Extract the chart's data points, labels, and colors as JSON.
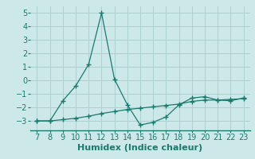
{
  "xlabel": "Humidex (Indice chaleur)",
  "line1_x": [
    7,
    8,
    9,
    10,
    11,
    12,
    13,
    14,
    15,
    16,
    17,
    18,
    19,
    20,
    21,
    22,
    23
  ],
  "line1_y": [
    -3.0,
    -3.0,
    -1.5,
    -0.4,
    1.2,
    5.0,
    0.1,
    -1.8,
    -3.3,
    -3.1,
    -2.7,
    -1.8,
    -1.3,
    -1.2,
    -1.45,
    -1.5,
    -1.3
  ],
  "line2_x": [
    7,
    8,
    9,
    10,
    11,
    12,
    13,
    14,
    15,
    16,
    17,
    18,
    19,
    20,
    21,
    22,
    23
  ],
  "line2_y": [
    -3.0,
    -3.0,
    -2.9,
    -2.8,
    -2.65,
    -2.45,
    -2.3,
    -2.15,
    -2.05,
    -1.95,
    -1.85,
    -1.75,
    -1.55,
    -1.45,
    -1.45,
    -1.4,
    -1.35
  ],
  "line_color": "#1a7a6e",
  "bg_color": "#cce8e8",
  "grid_color": "#aacccc",
  "ylim": [
    -3.7,
    5.5
  ],
  "xlim": [
    6.5,
    23.5
  ],
  "yticks": [
    -3,
    -2,
    -1,
    0,
    1,
    2,
    3,
    4,
    5
  ],
  "xticks": [
    7,
    8,
    9,
    10,
    11,
    12,
    13,
    14,
    15,
    16,
    17,
    18,
    19,
    20,
    21,
    22,
    23
  ],
  "tick_fontsize": 7,
  "xlabel_fontsize": 8
}
